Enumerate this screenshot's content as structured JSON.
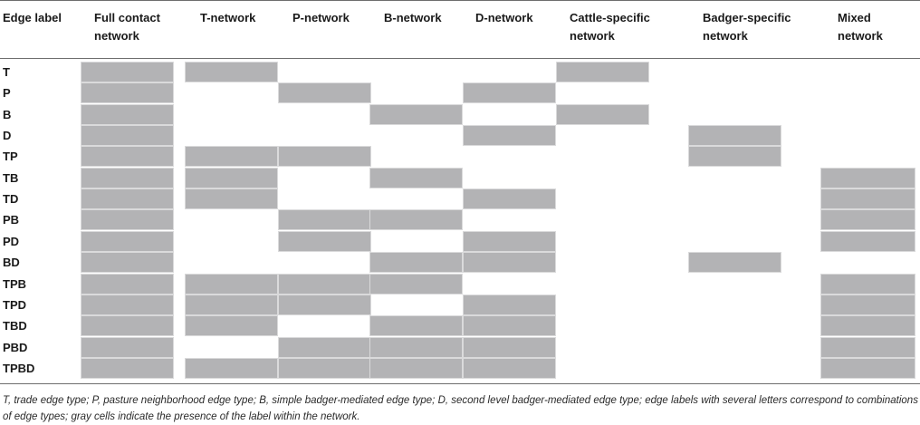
{
  "table": {
    "columns": [
      "Edge label",
      "Full contact network",
      "T-network",
      "P-network",
      "B-network",
      "D-network",
      "Cattle-specific network",
      "Badger-specific network",
      "Mixed network"
    ],
    "rows": [
      {
        "label": "T",
        "presence": [
          1,
          1,
          0,
          0,
          0,
          1,
          0,
          0
        ]
      },
      {
        "label": "P",
        "presence": [
          1,
          0,
          1,
          0,
          1,
          0,
          0,
          0
        ]
      },
      {
        "label": "B",
        "presence": [
          1,
          0,
          0,
          1,
          0,
          1,
          0,
          0
        ]
      },
      {
        "label": "D",
        "presence": [
          1,
          0,
          0,
          0,
          1,
          0,
          1,
          0
        ]
      },
      {
        "label": "TP",
        "presence": [
          1,
          1,
          1,
          0,
          0,
          0,
          1,
          0
        ]
      },
      {
        "label": "TB",
        "presence": [
          1,
          1,
          0,
          1,
          0,
          0,
          0,
          1
        ]
      },
      {
        "label": "TD",
        "presence": [
          1,
          1,
          0,
          0,
          1,
          0,
          0,
          1
        ]
      },
      {
        "label": "PB",
        "presence": [
          1,
          0,
          1,
          1,
          0,
          0,
          0,
          1
        ]
      },
      {
        "label": "PD",
        "presence": [
          1,
          0,
          1,
          0,
          1,
          0,
          0,
          1
        ]
      },
      {
        "label": "BD",
        "presence": [
          1,
          0,
          0,
          1,
          1,
          0,
          1,
          0
        ]
      },
      {
        "label": "TPB",
        "presence": [
          1,
          1,
          1,
          1,
          0,
          0,
          0,
          1
        ]
      },
      {
        "label": "TPD",
        "presence": [
          1,
          1,
          1,
          0,
          1,
          0,
          0,
          1
        ]
      },
      {
        "label": "TBD",
        "presence": [
          1,
          1,
          0,
          1,
          1,
          0,
          0,
          1
        ]
      },
      {
        "label": "PBD",
        "presence": [
          1,
          0,
          1,
          1,
          1,
          0,
          0,
          1
        ]
      },
      {
        "label": "TPBD",
        "presence": [
          1,
          1,
          1,
          1,
          1,
          0,
          0,
          1
        ]
      }
    ]
  },
  "footnote": "T, trade edge type; P, pasture neighborhood edge type; B, simple badger-mediated edge type; D, second level badger-mediated edge type; edge labels with several letters correspond to combinations of edge types; gray cells indicate the presence of the label within the network.",
  "colors": {
    "cell_present": "#b3b3b5",
    "cell_border": "#dadadb",
    "rule": "#6e6e6e"
  }
}
